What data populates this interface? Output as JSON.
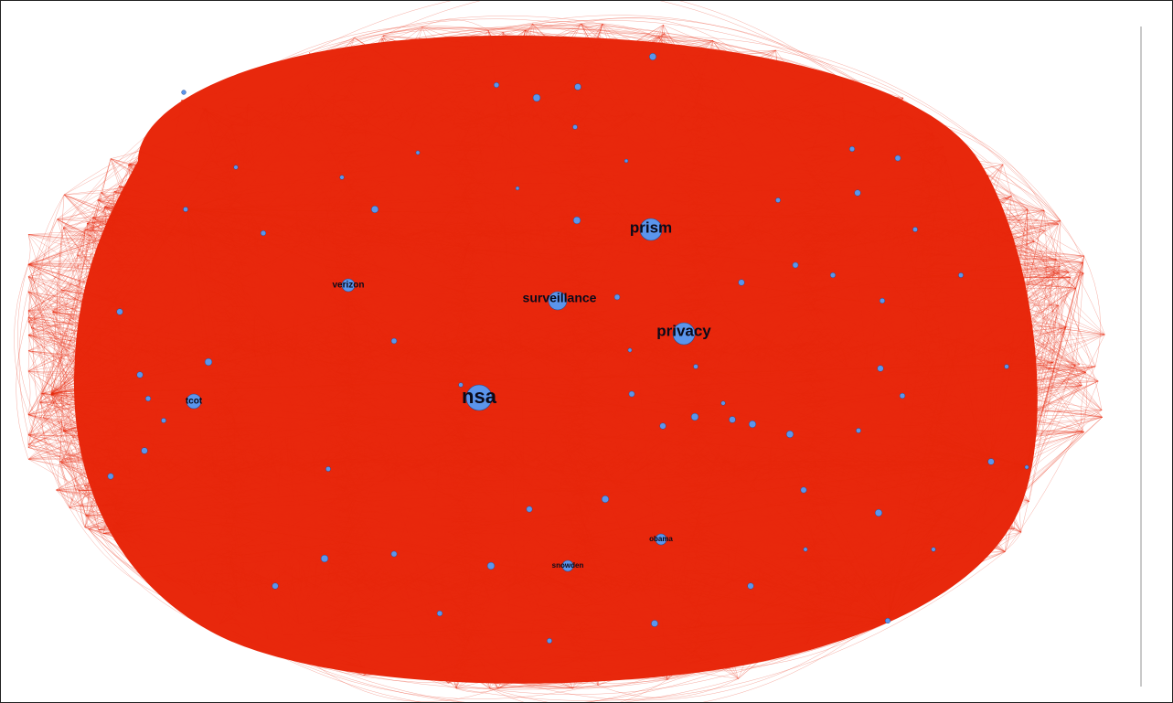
{
  "graph": {
    "edge_color": "#e8280c",
    "node_color": "#5b95ec",
    "node_stroke": "#2b4c8f",
    "label_color": "#0a0a1a",
    "labeled_nodes": [
      {
        "id": "nsa",
        "label": "nsa"
      },
      {
        "id": "prism",
        "label": "prism"
      },
      {
        "id": "privacy",
        "label": "privacy"
      },
      {
        "id": "surveillance",
        "label": "surveillance"
      },
      {
        "id": "verizon",
        "label": "verizon"
      },
      {
        "id": "tcot",
        "label": "tcot"
      },
      {
        "id": "obama",
        "label": "obama"
      },
      {
        "id": "snowden",
        "label": "snowden"
      }
    ]
  }
}
